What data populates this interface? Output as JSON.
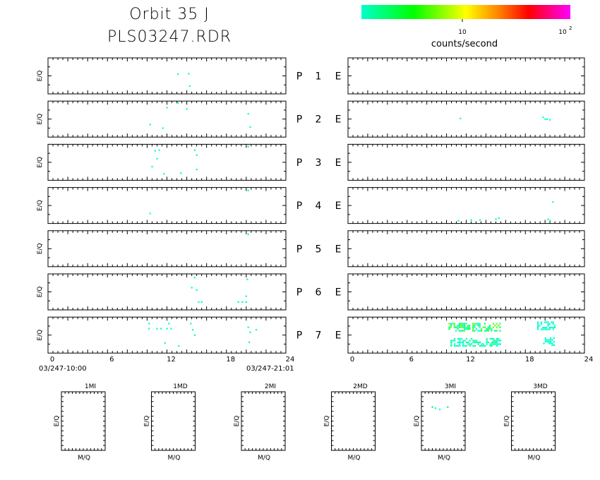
{
  "title": {
    "line1": "Orbit 35 J",
    "line2": "PLS03247.RDR"
  },
  "colorbar": {
    "label": "counts/second",
    "tick_10": "10",
    "tick_100_base": "10",
    "tick_100_exp": "2",
    "colors": [
      "#00ffcc",
      "#00ff00",
      "#ffff00",
      "#ff8800",
      "#ff0000",
      "#ff00ff"
    ]
  },
  "time_axis": {
    "start_label": "03/247-10:00",
    "end_label": "03/247-21:01",
    "ticks": [
      "0",
      "6",
      "12",
      "18",
      "24"
    ]
  },
  "chart_data": [
    {
      "type": "scatter",
      "name": "P 1",
      "ylabel": "E/Q",
      "xlim": [
        0,
        24
      ],
      "row_label": [
        "P",
        "1",
        "E"
      ],
      "left_points": [
        [
          13.1,
          0.55,
          "#00ffcc"
        ],
        [
          14.2,
          0.56,
          "#00ffcc"
        ],
        [
          14.3,
          0.22,
          "#00ffcc"
        ]
      ],
      "right_points": []
    },
    {
      "type": "scatter",
      "name": "P 2",
      "ylabel": "E/Q",
      "xlim": [
        0,
        24
      ],
      "row_label": [
        "P",
        "2",
        "E"
      ],
      "left_points": [
        [
          12.0,
          0.82,
          "#00ffcc"
        ],
        [
          13.1,
          0.95,
          "#00ffcc"
        ],
        [
          14.0,
          0.78,
          "#00ffcc"
        ],
        [
          10.3,
          0.35,
          "#00ffcc"
        ],
        [
          11.6,
          0.25,
          "#00ffcc"
        ],
        [
          20.2,
          0.65,
          "#00ffcc"
        ],
        [
          20.4,
          0.28,
          "#00ffcc"
        ]
      ],
      "right_points": [
        [
          11.4,
          0.52,
          "#00ffcc"
        ],
        [
          19.8,
          0.55,
          "#00ffcc"
        ],
        [
          20.0,
          0.5,
          "#00ffcc"
        ],
        [
          20.2,
          0.5,
          "#00ffcc"
        ],
        [
          20.5,
          0.48,
          "#00ffcc"
        ]
      ]
    },
    {
      "type": "scatter",
      "name": "P 3",
      "ylabel": "E/Q",
      "xlim": [
        0,
        24
      ],
      "row_label": [
        "P",
        "3",
        "E"
      ],
      "left_points": [
        [
          10.8,
          0.82,
          "#00ffcc"
        ],
        [
          11.2,
          0.84,
          "#00ffcc"
        ],
        [
          14.8,
          0.84,
          "#00ffcc"
        ],
        [
          15.0,
          0.7,
          "#00ffcc"
        ],
        [
          11.0,
          0.6,
          "#00ffcc"
        ],
        [
          10.5,
          0.38,
          "#00ffcc"
        ],
        [
          11.7,
          0.18,
          "#00ffcc"
        ],
        [
          13.4,
          0.2,
          "#00ffcc"
        ],
        [
          15.0,
          0.3,
          "#00ffcc"
        ],
        [
          20.2,
          0.94,
          "#00ffcc"
        ]
      ],
      "right_points": []
    },
    {
      "type": "scatter",
      "name": "P 4",
      "ylabel": "E/Q",
      "xlim": [
        0,
        24
      ],
      "row_label": [
        "P",
        "4",
        "E"
      ],
      "left_points": [
        [
          20.2,
          0.92,
          "#00ffcc"
        ],
        [
          10.3,
          0.28,
          "#00ffcc"
        ]
      ],
      "right_points": [
        [
          11.2,
          0.08,
          "#00ffcc"
        ],
        [
          12.5,
          0.1,
          "#00ffcc"
        ],
        [
          13.4,
          0.1,
          "#00ffcc"
        ],
        [
          15.0,
          0.12,
          "#00ffcc"
        ],
        [
          15.3,
          0.15,
          "#00ffcc"
        ],
        [
          20.3,
          0.12,
          "#00ffcc"
        ],
        [
          20.5,
          0.08,
          "#00ffcc"
        ],
        [
          20.8,
          0.6,
          "#00ffcc"
        ]
      ],
      "right_colors_note": ""
    },
    {
      "type": "scatter",
      "name": "P 5",
      "ylabel": "E/Q",
      "xlim": [
        0,
        24
      ],
      "row_label": [
        "P",
        "5",
        "E"
      ],
      "left_points": [
        [
          20.2,
          0.9,
          "#00ffcc"
        ]
      ],
      "right_points": []
    },
    {
      "type": "scatter",
      "name": "P 6",
      "ylabel": "E/Q",
      "xlim": [
        0,
        24
      ],
      "row_label": [
        "P",
        "6",
        "E"
      ],
      "left_points": [
        [
          14.8,
          0.9,
          "#00ffcc"
        ],
        [
          14.5,
          0.62,
          "#00ffcc"
        ],
        [
          15.0,
          0.55,
          "#00ffcc"
        ],
        [
          20.1,
          0.85,
          "#00ffcc"
        ],
        [
          20.0,
          0.38,
          "#00ffcc"
        ],
        [
          15.2,
          0.22,
          "#00ffcc"
        ],
        [
          15.5,
          0.22,
          "#00ffcc"
        ],
        [
          19.2,
          0.22,
          "#00ffcc"
        ],
        [
          19.6,
          0.22,
          "#00ffcc"
        ],
        [
          20.0,
          0.22,
          "#00ffcc"
        ]
      ],
      "right_points": []
    },
    {
      "type": "scatter",
      "name": "P 7",
      "ylabel": "E/Q",
      "xlim": [
        0,
        24
      ],
      "row_label": [
        "P",
        "7",
        "E"
      ],
      "left_points": [
        [
          10.2,
          0.82,
          "#00ffcc"
        ],
        [
          10.2,
          0.68,
          "#00ffcc"
        ],
        [
          11.0,
          0.68,
          "#00ffcc"
        ],
        [
          11.4,
          0.68,
          "#00ffcc"
        ],
        [
          12.2,
          0.82,
          "#00ffcc"
        ],
        [
          12.0,
          0.68,
          "#00ffcc"
        ],
        [
          12.4,
          0.68,
          "#00ffcc"
        ],
        [
          14.4,
          0.82,
          "#00ffcc"
        ],
        [
          14.6,
          0.65,
          "#00ffcc"
        ],
        [
          14.8,
          0.5,
          "#00ffcc"
        ],
        [
          11.8,
          0.28,
          "#00ffcc"
        ],
        [
          13.2,
          0.2,
          "#00ffcc"
        ],
        [
          20.2,
          0.72,
          "#00ffcc"
        ],
        [
          20.4,
          0.58,
          "#00ffcc"
        ],
        [
          21.0,
          0.65,
          "#00ffcc"
        ],
        [
          20.3,
          0.3,
          "#00ffcc"
        ]
      ],
      "right_points": [],
      "right_bands": [
        {
          "x0": 10.2,
          "x1": 15.5,
          "y": 0.74,
          "colors": [
            "#00ffcc",
            "#00ff66",
            "#66ff00"
          ]
        },
        {
          "x0": 10.4,
          "x1": 15.5,
          "y": 0.32,
          "colors": [
            "#00ffcc",
            "#00ff88"
          ]
        },
        {
          "x0": 19.2,
          "x1": 21.0,
          "y": 0.78,
          "colors": [
            "#00ffcc"
          ]
        },
        {
          "x0": 19.8,
          "x1": 21.0,
          "y": 0.34,
          "colors": [
            "#00ffcc"
          ]
        }
      ]
    }
  ],
  "small_panels": [
    {
      "title": "1MI",
      "xlabel": "M/Q",
      "ylabel": "E/Q",
      "points": []
    },
    {
      "title": "1MD",
      "xlabel": "M/Q",
      "ylabel": "E/Q",
      "points": []
    },
    {
      "title": "2MI",
      "xlabel": "M/Q",
      "ylabel": "E/Q",
      "points": []
    },
    {
      "title": "2MD",
      "xlabel": "M/Q",
      "ylabel": "E/Q",
      "points": []
    },
    {
      "title": "3MI",
      "xlabel": "M/Q",
      "ylabel": "E/Q",
      "points": [
        [
          0.25,
          0.74,
          "#00ff66"
        ],
        [
          0.32,
          0.72,
          "#00ffcc"
        ],
        [
          0.42,
          0.7,
          "#00ffcc"
        ],
        [
          0.6,
          0.74,
          "#00ff66"
        ]
      ]
    },
    {
      "title": "3MD",
      "xlabel": "M/Q",
      "ylabel": "E/Q",
      "points": []
    }
  ]
}
